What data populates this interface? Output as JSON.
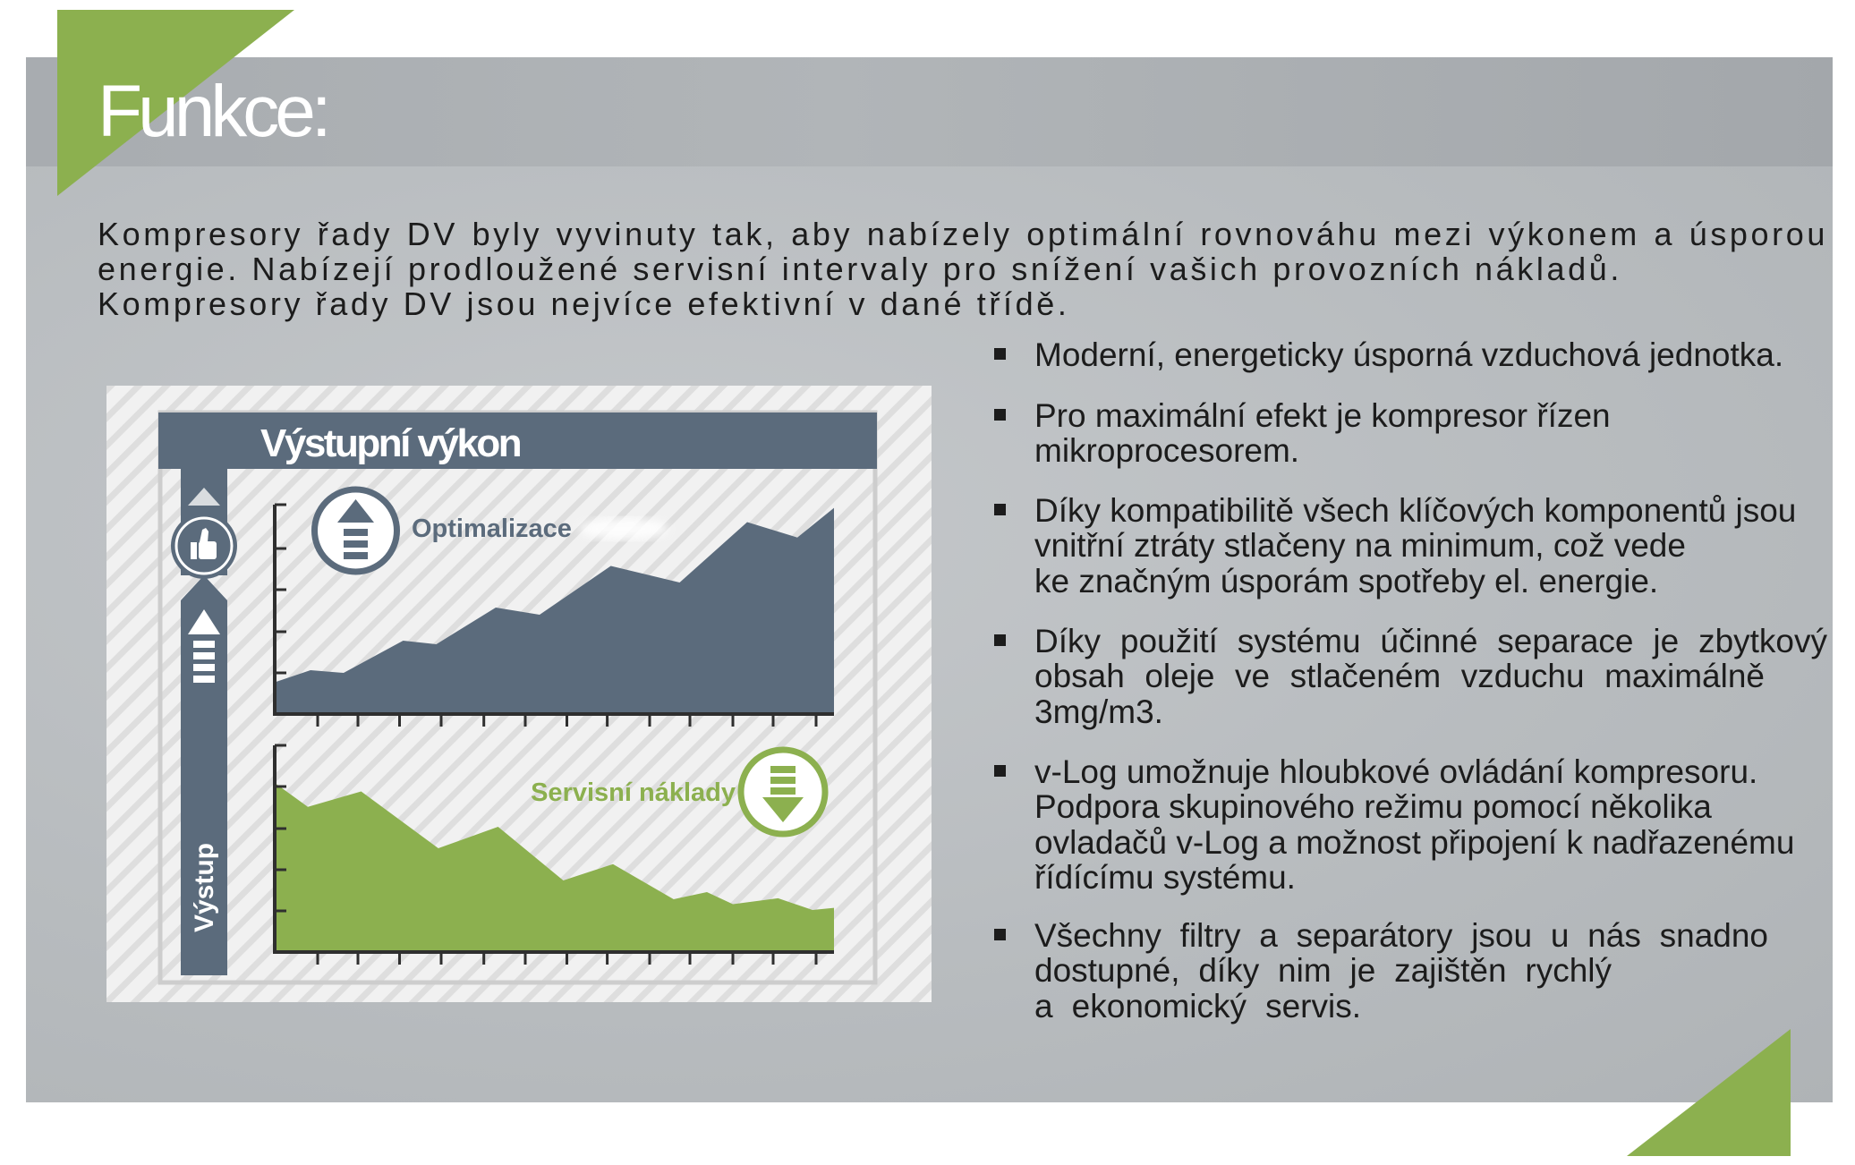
{
  "page": {
    "title": "Funkce:"
  },
  "intro": {
    "lines": [
      "Kompresory řady DV byly vyvinuty tak, aby nabízely optimální rovnováhu mezi výkonem a úsporou",
      "energie. Nabízejí prodloužené servisní intervaly pro snížení vašich provozních nákladů.",
      "Kompresory řady DV jsou nejvíce efektivní v dané třídě."
    ]
  },
  "features": [
    {
      "lines": [
        "Moderní, energeticky úsporná vzduchová jednotka."
      ]
    },
    {
      "lines": [
        "Pro maximální efekt je kompresor řízen",
        "mikroprocesorem."
      ]
    },
    {
      "lines": [
        "Díky kompatibilitě všech klíčových komponentů jsou",
        "vnitřní ztráty stlačeny na minimum, což vede",
        "ke značným úsporám spotřeby el. energie."
      ]
    },
    {
      "lines": [
        "Díky použití systému účinné separace je zbytkový",
        "obsah oleje ve stlačeném vzduchu maximálně",
        "3mg/m3."
      ]
    },
    {
      "lines": [
        "v-Log umožnuje hloubkové ovládání kompresoru.",
        "Podpora skupinového režimu pomocí několika",
        "ovladačů v-Log a možnost připojení k nadřazenému",
        "řídícímu systému."
      ]
    },
    {
      "lines": [
        "Všechny filtry a separátory jsou u nás snadno",
        "dostupné, díky nim je zajištěn rychlý",
        "a ekonomický servis."
      ]
    }
  ],
  "infographic": {
    "title": "Výstupní výkon",
    "vertical_label": "Výstup",
    "upper_label": "Optimalizace",
    "lower_label": "Servisní náklady",
    "badge_icon": "thumbs-up-icon",
    "upper_icon": "arrow-up-icon",
    "lower_icon": "arrow-down-icon"
  },
  "colors": {
    "accent_green": "#8cb04f",
    "slate": "#5b6b7c",
    "panel_gray": "#b8bcbf",
    "text": "#1c1c1c"
  }
}
